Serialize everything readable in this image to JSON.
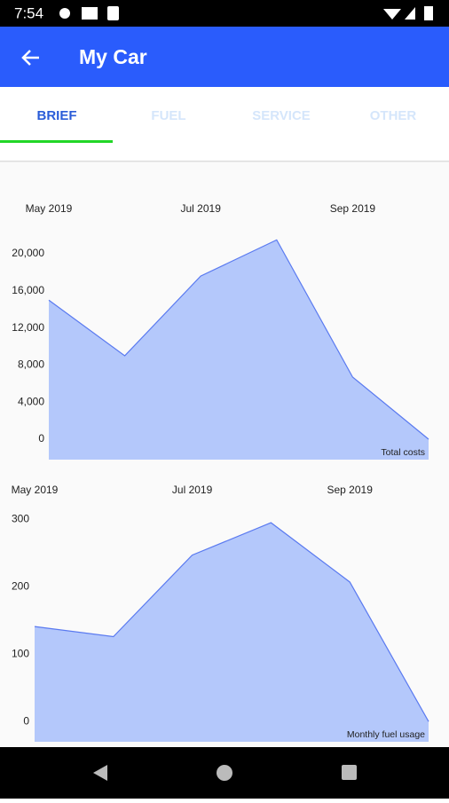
{
  "status_bar": {
    "time": "7:54"
  },
  "app_bar": {
    "title": "My Car"
  },
  "tabs": [
    "BRIEF",
    "FUEL",
    "SERVICE",
    "OTHER"
  ],
  "chart_data": [
    {
      "type": "area",
      "categories": [
        "May 2019",
        null,
        "Jul 2019",
        null,
        "Sep 2019",
        null
      ],
      "values": [
        15000,
        9000,
        17600,
        21500,
        6700,
        0
      ],
      "color": "#b4c8fb",
      "line_color": "#5a7af0",
      "ylim": [
        -2200,
        22300
      ],
      "yticks": [
        0,
        {
          "value": 4000,
          "label": "4,000"
        },
        {
          "value": 8000,
          "label": "8,000"
        },
        {
          "value": 12000,
          "label": "12,000"
        },
        {
          "value": 16000,
          "label": "16,000"
        },
        {
          "value": 20000,
          "label": "20,000"
        }
      ],
      "annotation": "Total costs"
    },
    {
      "type": "area",
      "categories": [
        "May 2019",
        null,
        "Jul 2019",
        null,
        "Sep 2019",
        null
      ],
      "values": [
        141,
        126,
        247,
        295,
        207,
        0
      ],
      "color": "#b4c8fb",
      "line_color": "#5a7af0",
      "ylim": [
        -30,
        307
      ],
      "yticks": [
        0,
        100,
        200,
        300
      ],
      "annotation": "Monthly fuel usage"
    }
  ]
}
